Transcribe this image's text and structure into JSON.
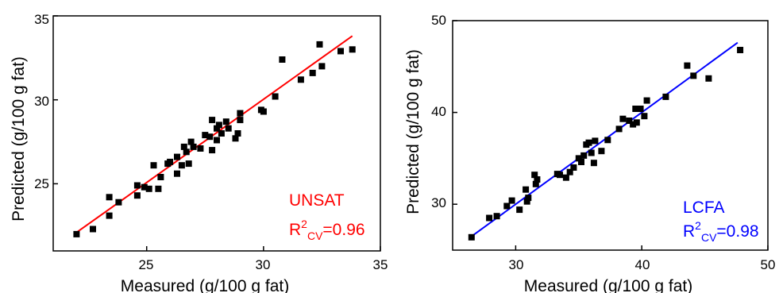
{
  "chart_data": [
    {
      "type": "scatter",
      "xlabel": "Measured (g/100 g fat)",
      "ylabel": "Predicted (g/100 g fat)",
      "xlim": [
        21,
        35
      ],
      "ylim": [
        21,
        35
      ],
      "xticks": [
        25,
        30,
        35
      ],
      "yticks": [
        25,
        30,
        35
      ],
      "x_ticklabels": [
        "25",
        "30",
        "35"
      ],
      "y_ticklabels": [
        "25",
        "30",
        "35"
      ],
      "grid": false,
      "annotation": {
        "name": "UNSAT",
        "r2_prefix": "R",
        "r2_sup": "2",
        "r2_sub": "CV",
        "r2_value": "=0.96",
        "color": "#ff0000"
      },
      "fit_line": {
        "x": [
          22.0,
          33.8
        ],
        "y": [
          22.1,
          33.8
        ],
        "color": "#ff0000"
      },
      "marker_color": "#000000",
      "series": [
        {
          "x": [
            22.0,
            22.7,
            23.4,
            23.4,
            23.8,
            24.6,
            24.6,
            24.9,
            25.1,
            25.3,
            25.5,
            25.6,
            25.9,
            26.0,
            26.3,
            26.3,
            26.5,
            26.6,
            26.7,
            26.8,
            26.9,
            27.0,
            27.3,
            27.5,
            27.7,
            27.8,
            27.8,
            28.0,
            28.0,
            28.1,
            28.2,
            28.4,
            28.5,
            28.8,
            28.9,
            29.0,
            29.0,
            29.9,
            30.0,
            30.5,
            30.8,
            31.6,
            32.1,
            32.4,
            32.5,
            33.3,
            33.8
          ],
          "y": [
            22.0,
            22.3,
            23.1,
            24.2,
            23.9,
            24.3,
            24.9,
            24.8,
            24.7,
            26.1,
            24.7,
            25.4,
            26.2,
            26.3,
            25.6,
            26.6,
            26.1,
            27.2,
            26.9,
            26.2,
            27.5,
            27.2,
            27.1,
            27.9,
            27.8,
            28.8,
            27.0,
            27.6,
            28.3,
            28.5,
            28.0,
            28.7,
            28.3,
            27.7,
            28.0,
            29.2,
            28.8,
            29.4,
            29.3,
            30.2,
            32.4,
            31.2,
            31.6,
            33.3,
            32.0,
            32.9,
            33.0
          ]
        }
      ]
    },
    {
      "type": "scatter",
      "xlabel": "Measured (g/100 g fat)",
      "ylabel": "Predicted (g/100 g fat)",
      "xlim": [
        25,
        50
      ],
      "ylim": [
        25,
        50
      ],
      "xticks": [
        30,
        40,
        50
      ],
      "yticks": [
        30,
        40,
        50
      ],
      "x_ticklabels": [
        "30",
        "40",
        "50"
      ],
      "y_ticklabels": [
        "30",
        "40",
        "50"
      ],
      "grid": false,
      "annotation": {
        "name": "LCFA",
        "r2_prefix": "R",
        "r2_sup": "2",
        "r2_sub": "CV",
        "r2_value": "=0.98",
        "color": "#0000ff"
      },
      "fit_line": {
        "x": [
          26.4,
          47.6
        ],
        "y": [
          26.4,
          47.6
        ],
        "color": "#0000ff"
      },
      "marker_color": "#000000",
      "series": [
        {
          "x": [
            26.5,
            27.9,
            28.5,
            29.3,
            29.7,
            30.3,
            30.8,
            30.9,
            31.0,
            31.5,
            31.6,
            31.7,
            33.3,
            33.5,
            34.0,
            34.3,
            34.6,
            35.0,
            35.2,
            35.4,
            35.6,
            35.8,
            36.0,
            36.2,
            36.3,
            36.8,
            37.3,
            38.2,
            38.5,
            39.0,
            39.3,
            39.5,
            39.6,
            39.9,
            40.2,
            40.4,
            41.9,
            43.6,
            44.1,
            45.3,
            47.8
          ],
          "y": [
            26.4,
            28.5,
            28.7,
            29.8,
            30.4,
            29.4,
            31.6,
            30.3,
            30.7,
            33.2,
            32.2,
            32.7,
            33.3,
            33.2,
            32.9,
            33.5,
            34.0,
            35.0,
            34.6,
            35.3,
            36.5,
            36.7,
            35.6,
            34.5,
            36.9,
            35.8,
            37.0,
            38.2,
            39.3,
            39.1,
            38.7,
            40.4,
            38.9,
            40.4,
            39.6,
            41.3,
            41.7,
            45.1,
            44.0,
            43.7,
            46.8
          ]
        }
      ]
    }
  ]
}
